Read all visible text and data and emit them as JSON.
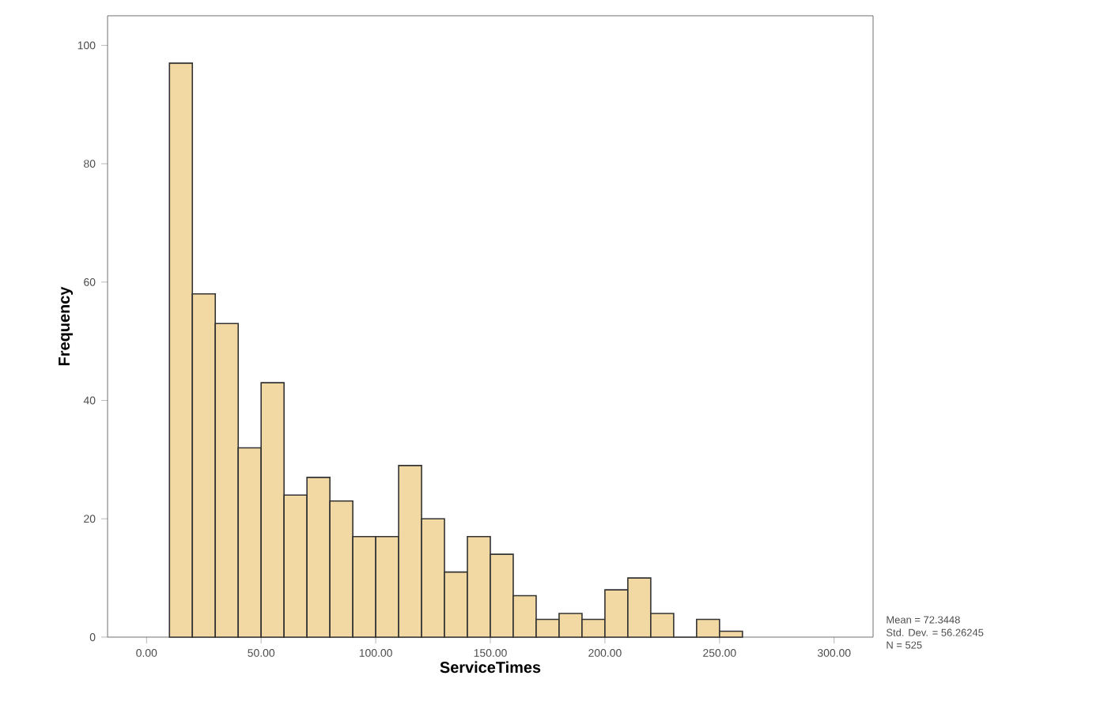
{
  "chart_data": {
    "type": "histogram",
    "xlabel": "ServiceTimes",
    "ylabel": "Frequency",
    "bins": [
      10,
      20,
      30,
      40,
      50,
      60,
      70,
      80,
      90,
      100,
      110,
      120,
      130,
      140,
      150,
      160,
      170,
      180,
      190,
      200,
      210,
      220,
      230,
      240,
      250,
      260
    ],
    "values": [
      97,
      58,
      53,
      32,
      43,
      24,
      27,
      23,
      17,
      17,
      29,
      20,
      11,
      17,
      14,
      7,
      3,
      4,
      3,
      8,
      10,
      4,
      0,
      3,
      1
    ],
    "color": "#f2d8a2",
    "xlim": [
      -17,
      317
    ],
    "ylim": [
      0,
      105
    ],
    "xticks": [
      {
        "value": 0,
        "label": "0.00"
      },
      {
        "value": 50,
        "label": "50.00"
      },
      {
        "value": 100,
        "label": "100.00"
      },
      {
        "value": 150,
        "label": "150.00"
      },
      {
        "value": 200,
        "label": "200.00"
      },
      {
        "value": 250,
        "label": "250.00"
      },
      {
        "value": 300,
        "label": "300.00"
      }
    ],
    "yticks": [
      0,
      20,
      40,
      60,
      80,
      100
    ],
    "grid": false,
    "annotations": [
      "Mean = 72.3448",
      "Std. Dev. = 56.26245",
      "N = 525"
    ]
  }
}
